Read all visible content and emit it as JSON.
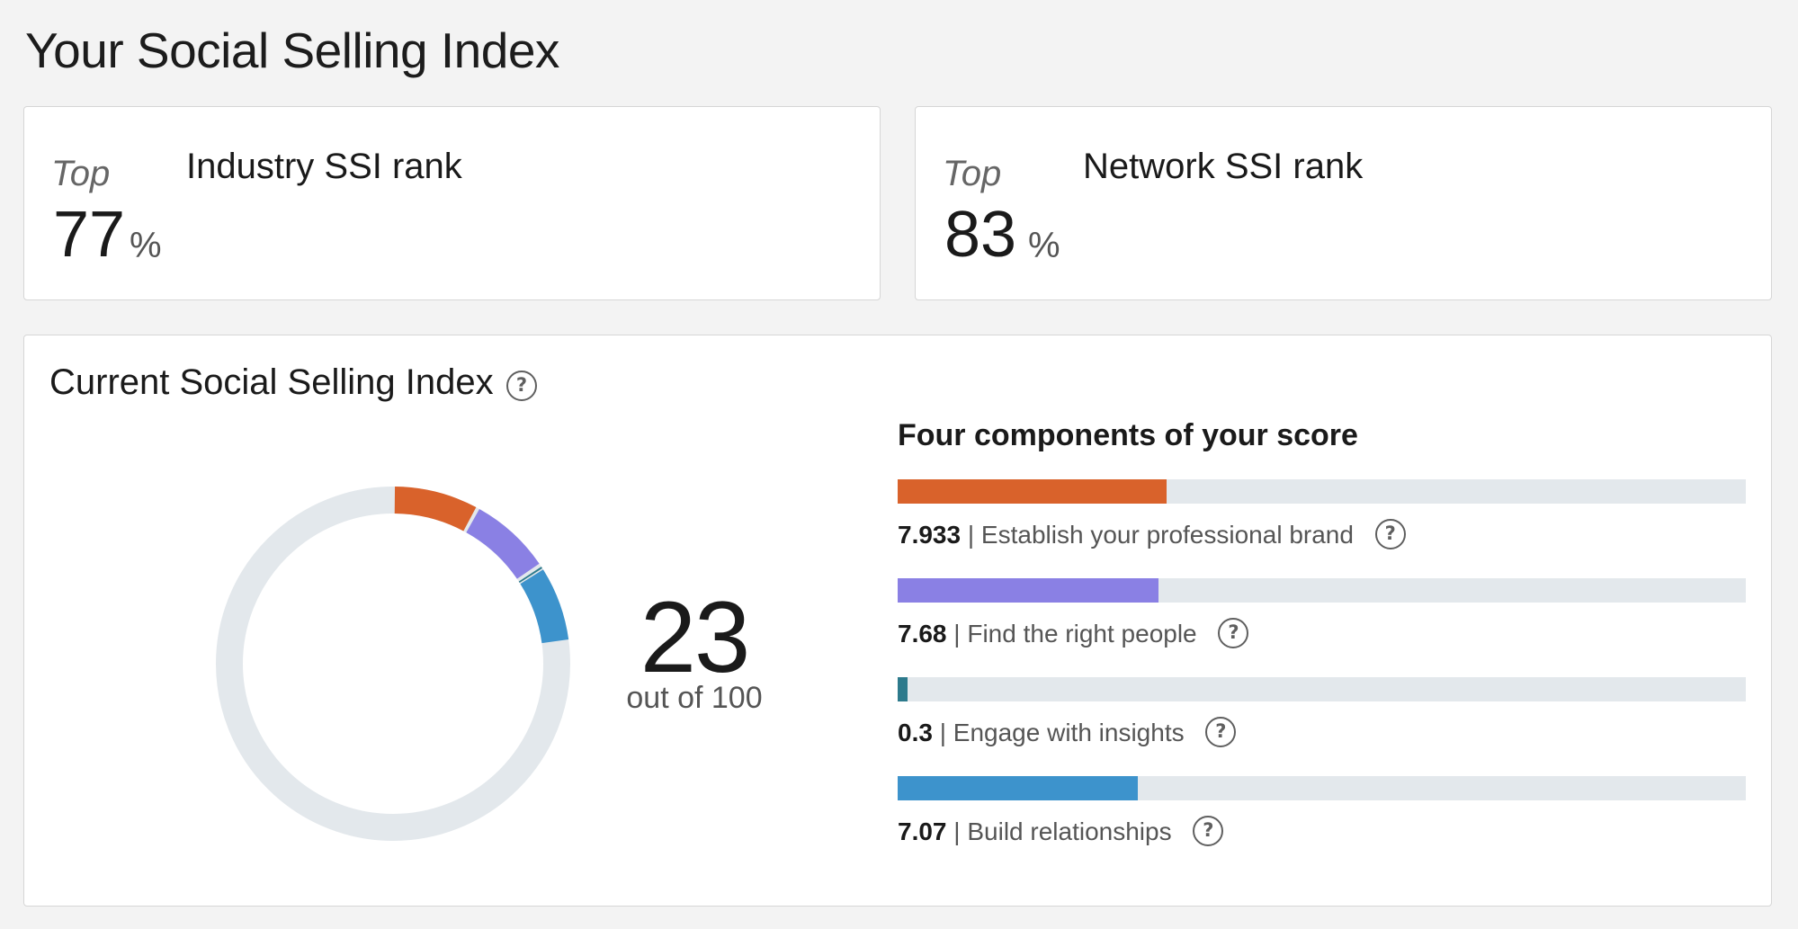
{
  "page_title": "Your Social Selling Index",
  "industry_rank": {
    "top_label": "Top",
    "value": "77",
    "percent_sign": "%",
    "label": "Industry SSI rank"
  },
  "network_rank": {
    "top_label": "Top",
    "value": "83",
    "percent_sign": "%",
    "label": "Network SSI rank"
  },
  "current_ssi": {
    "title": "Current Social Selling Index",
    "help_icon": "question-circle-icon",
    "score": "23",
    "score_caption": "out of 100",
    "max": 100
  },
  "components": {
    "title": "Four components of your score",
    "max_per_component": 25,
    "track_color": "#e3e8ec",
    "items": [
      {
        "value": "7.933",
        "separator": "|",
        "label": "Establish your professional brand",
        "color": "#d9622b"
      },
      {
        "value": "7.68",
        "separator": "|",
        "label": "Find the right people",
        "color": "#8a80e4"
      },
      {
        "value": "0.3",
        "separator": "|",
        "label": "Engage with insights",
        "color": "#2d7a8c"
      },
      {
        "value": "7.07",
        "separator": "|",
        "label": "Build relationships",
        "color": "#3d93cc"
      }
    ]
  },
  "donut": {
    "track_color": "#e3e8ec",
    "segments": [
      {
        "value": 7.933,
        "color": "#d9622b"
      },
      {
        "value": 7.68,
        "color": "#8a80e4"
      },
      {
        "value": 0.3,
        "color": "#2d7a8c"
      },
      {
        "value": 7.07,
        "color": "#3d93cc"
      }
    ]
  }
}
